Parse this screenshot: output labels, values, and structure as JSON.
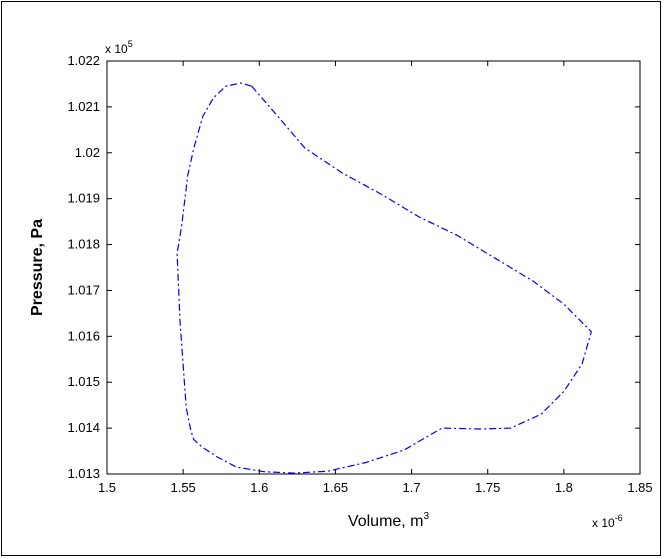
{
  "chart_data": {
    "type": "line",
    "xlabel": "Volume, m",
    "xlabel_superscript": "3",
    "ylabel": "Pressure, Pa",
    "x_multiplier_base": "x 10",
    "x_multiplier_exponent": "-6",
    "y_multiplier_base": "x 10",
    "y_multiplier_exponent": "5",
    "xlim": [
      1.5,
      1.85
    ],
    "ylim": [
      1.013,
      1.022
    ],
    "xticks": [
      1.5,
      1.55,
      1.6,
      1.65,
      1.7,
      1.75,
      1.8,
      1.85
    ],
    "xtick_labels": [
      "1.5",
      "1.55",
      "1.6",
      "1.65",
      "1.7",
      "1.75",
      "1.8",
      "1.85"
    ],
    "yticks": [
      1.013,
      1.014,
      1.015,
      1.016,
      1.017,
      1.018,
      1.019,
      1.02,
      1.021,
      1.022
    ],
    "ytick_labels": [
      "1.013",
      "1.014",
      "1.015",
      "1.016",
      "1.017",
      "1.018",
      "1.019",
      "1.02",
      "1.021",
      "1.022"
    ],
    "grid": false,
    "series": [
      {
        "color": "#0000ff",
        "line_style": "dash-dot",
        "x": [
          1.595,
          1.612,
          1.63,
          1.655,
          1.68,
          1.705,
          1.73,
          1.755,
          1.78,
          1.8,
          1.818,
          1.812,
          1.8,
          1.785,
          1.765,
          1.745,
          1.72,
          1.695,
          1.67,
          1.645,
          1.623,
          1.603,
          1.585,
          1.572,
          1.562,
          1.557,
          1.555,
          1.552,
          1.548,
          1.546,
          1.549,
          1.553,
          1.557,
          1.563,
          1.57,
          1.578,
          1.588,
          1.595
        ],
        "y": [
          1.02145,
          1.0208,
          1.0201,
          1.01955,
          1.0191,
          1.0186,
          1.0182,
          1.0177,
          1.0172,
          1.0167,
          1.0161,
          1.0154,
          1.0148,
          1.0143,
          1.014,
          1.01398,
          1.014,
          1.01352,
          1.01325,
          1.01306,
          1.01302,
          1.01305,
          1.01315,
          1.01338,
          1.0136,
          1.01375,
          1.01395,
          1.01445,
          1.0163,
          1.0178,
          1.0184,
          1.0195,
          1.0201,
          1.0208,
          1.0212,
          1.02145,
          1.02152,
          1.02145
        ]
      }
    ]
  }
}
